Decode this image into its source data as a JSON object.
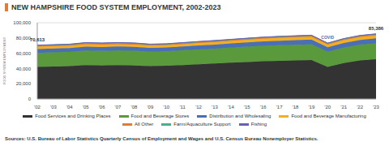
{
  "chart_data": {
    "type": "area",
    "title": "NEW HAMPSHIRE FOOD SYSTEM EMPLOYMENT, 2002-2023",
    "y_label": "FOOD SYSTEM EMPLOYMENT",
    "source": "Sources: U.S. Bureau of Labor Statistics Quarterly Census of Employment and Wages and U.S. Census Bureau Nonemployer Statistics.",
    "stacked": true,
    "grid": true,
    "legend": "bottom",
    "categories": [
      "'02",
      "'03",
      "'04",
      "'05",
      "'06",
      "'07",
      "'08",
      "'09",
      "'10",
      "'11",
      "'12",
      "'13",
      "'14",
      "'15",
      "'16",
      "'17",
      "'18",
      "'19",
      "'20",
      "'21",
      "'22",
      "'23"
    ],
    "ylim": [
      0,
      100000
    ],
    "yticks": [
      {
        "value": 0,
        "label": "0"
      },
      {
        "value": 20000,
        "label": "20,000"
      },
      {
        "value": 40000,
        "label": "40,000"
      },
      {
        "value": 60000,
        "label": "60,000"
      },
      {
        "value": 80000,
        "label": "80,000"
      },
      {
        "value": 100000,
        "label": "100,000"
      }
    ],
    "series": [
      {
        "name": "Food Services and Drinking Places",
        "color": "#333333",
        "values": [
          42000,
          42500,
          43000,
          44500,
          44000,
          44500,
          44000,
          43000,
          43500,
          44500,
          45500,
          46500,
          47500,
          48500,
          49500,
          50000,
          50500,
          51000,
          42000,
          47000,
          50500,
          52000
        ]
      },
      {
        "name": "Food and Beverage Stores",
        "color": "#5b9a3c",
        "values": [
          18500,
          18600,
          18700,
          19000,
          18900,
          19000,
          19200,
          19000,
          19000,
          19200,
          19400,
          19500,
          19800,
          20000,
          20200,
          20400,
          20500,
          20600,
          20000,
          20400,
          20700,
          21000
        ]
      },
      {
        "name": "Distribution and Wholesaling",
        "color": "#4a6fb5",
        "values": [
          5000,
          5000,
          5100,
          5200,
          5300,
          5300,
          5200,
          5000,
          5000,
          5100,
          5300,
          5400,
          5500,
          5700,
          5800,
          6000,
          6100,
          6200,
          5800,
          6100,
          6300,
          6500
        ]
      },
      {
        "name": "Food and Beverage Manufacturing",
        "color": "#f2b021",
        "values": [
          3000,
          3000,
          3000,
          3100,
          3100,
          3100,
          3000,
          2900,
          2900,
          3000,
          3100,
          3200,
          3300,
          3400,
          3500,
          3600,
          3700,
          3700,
          3500,
          3600,
          3700,
          3800
        ]
      },
      {
        "name": "All Other",
        "color": "#e07b39",
        "values": [
          1200,
          1200,
          1200,
          1250,
          1250,
          1250,
          1250,
          1200,
          1200,
          1250,
          1250,
          1300,
          1300,
          1300,
          1350,
          1350,
          1350,
          1400,
          1300,
          1350,
          1400,
          1400
        ]
      },
      {
        "name": "Farm/Aquaculture Support",
        "color": "#4caf8a",
        "values": [
          613,
          600,
          590,
          580,
          570,
          560,
          550,
          540,
          530,
          520,
          510,
          500,
          490,
          480,
          470,
          460,
          450,
          440,
          420,
          410,
          400,
          386
        ]
      },
      {
        "name": "Fishing",
        "color": "#6b5fb5",
        "values": [
          300,
          300,
          300,
          300,
          300,
          300,
          300,
          300,
          300,
          300,
          300,
          300,
          300,
          300,
          300,
          300,
          300,
          300,
          300,
          300,
          300,
          300
        ]
      }
    ],
    "annotations": [
      {
        "x": "'02",
        "value": 70613,
        "label": "70,613"
      },
      {
        "x": "'23",
        "value": 85386,
        "label": "85,386"
      },
      {
        "x": "'20",
        "label": "COVID"
      }
    ]
  }
}
